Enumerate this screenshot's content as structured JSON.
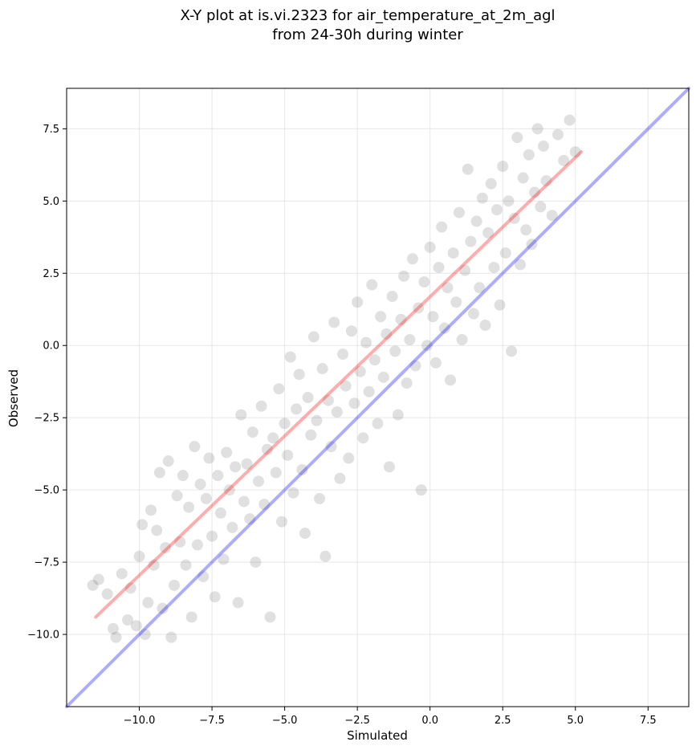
{
  "colors": {
    "points": "#000000",
    "identity_line": "#0000ff",
    "fit_line": "#ff0000",
    "grid": "#dddddd"
  },
  "chart_data": {
    "type": "scatter",
    "title": "X-Y plot at is.vi.2323 for air_temperature_at_2m_agl",
    "subtitle": "from 24-30h during winter",
    "xlabel": "Simulated",
    "ylabel": "Observed",
    "xlim": [
      -12.5,
      8.9
    ],
    "ylim": [
      -12.5,
      8.9
    ],
    "xticks": [
      -10.0,
      -7.5,
      -5.0,
      -2.5,
      0.0,
      2.5,
      5.0,
      7.5
    ],
    "yticks": [
      -10.0,
      -7.5,
      -5.0,
      -2.5,
      0.0,
      2.5,
      5.0,
      7.5
    ],
    "xtick_labels": [
      "−10.0",
      "−7.5",
      "−5.0",
      "−2.5",
      "0.0",
      "2.5",
      "5.0",
      "7.5"
    ],
    "ytick_labels": [
      "−10.0",
      "−7.5",
      "−5.0",
      "−2.5",
      "0.0",
      "2.5",
      "5.0",
      "7.5"
    ],
    "grid": true,
    "identity_line": {
      "x": [
        -12.5,
        8.9
      ],
      "y": [
        -12.5,
        8.9
      ]
    },
    "fit_line": {
      "x": [
        -11.5,
        5.2
      ],
      "y": [
        -9.4,
        6.7
      ]
    },
    "series": [
      {
        "points": [
          [
            -11.6,
            -8.3
          ],
          [
            -11.4,
            -8.1
          ],
          [
            -11.1,
            -8.6
          ],
          [
            -10.9,
            -9.8
          ],
          [
            -10.8,
            -10.1
          ],
          [
            -10.6,
            -7.9
          ],
          [
            -10.4,
            -9.5
          ],
          [
            -10.3,
            -8.4
          ],
          [
            -10.1,
            -9.7
          ],
          [
            -10.0,
            -7.3
          ],
          [
            -9.9,
            -6.2
          ],
          [
            -9.8,
            -10.0
          ],
          [
            -9.7,
            -8.9
          ],
          [
            -9.6,
            -5.7
          ],
          [
            -9.5,
            -7.6
          ],
          [
            -9.4,
            -6.4
          ],
          [
            -9.3,
            -4.4
          ],
          [
            -9.2,
            -9.1
          ],
          [
            -9.1,
            -7.0
          ],
          [
            -9.0,
            -4.0
          ],
          [
            -8.9,
            -10.1
          ],
          [
            -8.8,
            -8.3
          ],
          [
            -8.7,
            -5.2
          ],
          [
            -8.6,
            -6.8
          ],
          [
            -8.5,
            -4.5
          ],
          [
            -8.4,
            -7.6
          ],
          [
            -8.3,
            -5.6
          ],
          [
            -8.2,
            -9.4
          ],
          [
            -8.1,
            -3.5
          ],
          [
            -8.0,
            -6.9
          ],
          [
            -7.9,
            -4.8
          ],
          [
            -7.8,
            -8.0
          ],
          [
            -7.7,
            -5.3
          ],
          [
            -7.6,
            -3.9
          ],
          [
            -7.5,
            -6.6
          ],
          [
            -7.4,
            -8.7
          ],
          [
            -7.3,
            -4.5
          ],
          [
            -7.2,
            -5.8
          ],
          [
            -7.1,
            -7.4
          ],
          [
            -7.0,
            -3.7
          ],
          [
            -6.9,
            -5.0
          ],
          [
            -6.8,
            -6.3
          ],
          [
            -6.7,
            -4.2
          ],
          [
            -6.6,
            -8.9
          ],
          [
            -6.5,
            -2.4
          ],
          [
            -6.4,
            -5.4
          ],
          [
            -6.3,
            -4.1
          ],
          [
            -6.2,
            -6.0
          ],
          [
            -6.1,
            -3.0
          ],
          [
            -6.0,
            -7.5
          ],
          [
            -5.9,
            -4.7
          ],
          [
            -5.8,
            -2.1
          ],
          [
            -5.7,
            -5.5
          ],
          [
            -5.6,
            -3.6
          ],
          [
            -5.5,
            -9.4
          ],
          [
            -5.4,
            -3.2
          ],
          [
            -5.3,
            -4.4
          ],
          [
            -5.2,
            -1.5
          ],
          [
            -5.1,
            -6.1
          ],
          [
            -5.0,
            -2.7
          ],
          [
            -4.9,
            -3.8
          ],
          [
            -4.8,
            -0.4
          ],
          [
            -4.7,
            -5.1
          ],
          [
            -4.6,
            -2.2
          ],
          [
            -4.5,
            -1.0
          ],
          [
            -4.4,
            -4.3
          ],
          [
            -4.3,
            -6.5
          ],
          [
            -4.2,
            -1.8
          ],
          [
            -4.1,
            -3.1
          ],
          [
            -4.0,
            0.3
          ],
          [
            -3.9,
            -2.6
          ],
          [
            -3.8,
            -5.3
          ],
          [
            -3.7,
            -0.8
          ],
          [
            -3.6,
            -7.3
          ],
          [
            -3.5,
            -1.9
          ],
          [
            -3.4,
            -3.5
          ],
          [
            -3.3,
            0.8
          ],
          [
            -3.2,
            -2.3
          ],
          [
            -3.1,
            -4.6
          ],
          [
            -3.0,
            -0.3
          ],
          [
            -2.9,
            -1.4
          ],
          [
            -2.8,
            -3.9
          ],
          [
            -2.7,
            0.5
          ],
          [
            -2.6,
            -2.0
          ],
          [
            -2.5,
            1.5
          ],
          [
            -2.4,
            -0.9
          ],
          [
            -2.3,
            -3.2
          ],
          [
            -2.2,
            0.1
          ],
          [
            -2.1,
            -1.6
          ],
          [
            -2.0,
            2.1
          ],
          [
            -1.9,
            -0.5
          ],
          [
            -1.8,
            -2.7
          ],
          [
            -1.7,
            1.0
          ],
          [
            -1.6,
            -1.1
          ],
          [
            -1.5,
            0.4
          ],
          [
            -1.4,
            -4.2
          ],
          [
            -1.3,
            1.7
          ],
          [
            -1.2,
            -0.2
          ],
          [
            -1.1,
            -2.4
          ],
          [
            -1.0,
            0.9
          ],
          [
            -0.9,
            2.4
          ],
          [
            -0.8,
            -1.3
          ],
          [
            -0.7,
            0.2
          ],
          [
            -0.6,
            3.0
          ],
          [
            -0.5,
            -0.7
          ],
          [
            -0.4,
            1.3
          ],
          [
            -0.3,
            -5.0
          ],
          [
            -0.2,
            2.2
          ],
          [
            -0.1,
            0.0
          ],
          [
            0.0,
            3.4
          ],
          [
            0.1,
            1.0
          ],
          [
            0.2,
            -0.6
          ],
          [
            0.3,
            2.7
          ],
          [
            0.4,
            4.1
          ],
          [
            0.5,
            0.6
          ],
          [
            0.6,
            2.0
          ],
          [
            0.7,
            -1.2
          ],
          [
            0.8,
            3.2
          ],
          [
            0.9,
            1.5
          ],
          [
            1.0,
            4.6
          ],
          [
            1.1,
            0.2
          ],
          [
            1.2,
            2.6
          ],
          [
            1.3,
            6.1
          ],
          [
            1.4,
            3.6
          ],
          [
            1.5,
            1.1
          ],
          [
            1.6,
            4.3
          ],
          [
            1.7,
            2.0
          ],
          [
            1.8,
            5.1
          ],
          [
            1.9,
            0.7
          ],
          [
            2.0,
            3.9
          ],
          [
            2.1,
            5.6
          ],
          [
            2.2,
            2.7
          ],
          [
            2.3,
            4.7
          ],
          [
            2.4,
            1.4
          ],
          [
            2.5,
            6.2
          ],
          [
            2.6,
            3.2
          ],
          [
            2.7,
            5.0
          ],
          [
            2.8,
            -0.2
          ],
          [
            2.9,
            4.4
          ],
          [
            3.0,
            7.2
          ],
          [
            3.1,
            2.8
          ],
          [
            3.2,
            5.8
          ],
          [
            3.3,
            4.0
          ],
          [
            3.4,
            6.6
          ],
          [
            3.5,
            3.5
          ],
          [
            3.6,
            5.3
          ],
          [
            3.7,
            7.5
          ],
          [
            3.8,
            4.8
          ],
          [
            3.9,
            6.9
          ],
          [
            4.0,
            5.7
          ],
          [
            4.2,
            4.5
          ],
          [
            4.4,
            7.3
          ],
          [
            4.6,
            6.4
          ],
          [
            4.8,
            7.8
          ],
          [
            5.0,
            6.7
          ]
        ]
      }
    ]
  }
}
